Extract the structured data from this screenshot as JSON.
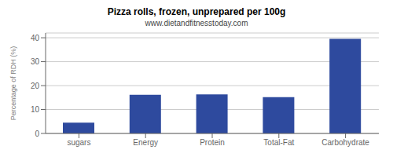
{
  "chart_data": {
    "type": "bar",
    "title": "Pizza rolls, frozen, unprepared per 100g",
    "subtitle": "www.dietandfitnesstoday.com",
    "categories": [
      "sugars",
      "Energy",
      "Protein",
      "Total-Fat",
      "Carbohydrate"
    ],
    "values": [
      4.5,
      16.2,
      16.3,
      15.2,
      39.5
    ],
    "color": "#2e4a9e",
    "ylabel": "Percentage of RDH (%)",
    "ylim": [
      0,
      42
    ],
    "yticks": [
      0,
      10,
      20,
      30,
      40
    ],
    "grid": true
  }
}
